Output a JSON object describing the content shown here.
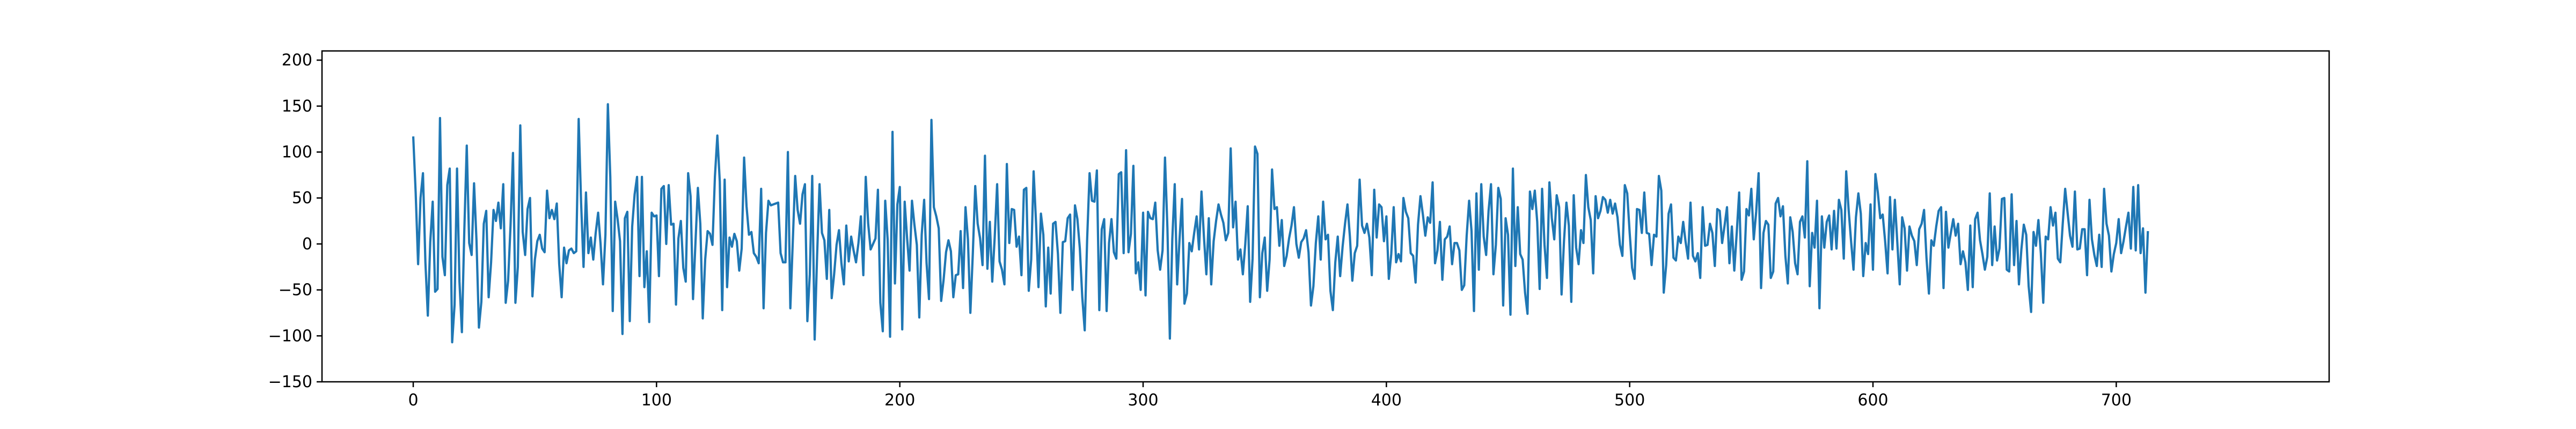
{
  "chart_data": {
    "type": "line",
    "title": "",
    "xlabel": "",
    "ylabel": "",
    "xlim": [
      -37.5,
      787.5
    ],
    "ylim": [
      -150,
      210
    ],
    "x_ticks": [
      0,
      100,
      200,
      300,
      400,
      500,
      600,
      700
    ],
    "x_tick_labels": [
      "0",
      "100",
      "200",
      "300",
      "400",
      "500",
      "600",
      "700"
    ],
    "y_ticks": [
      -150,
      -100,
      -50,
      0,
      50,
      100,
      150,
      200
    ],
    "y_tick_labels": [
      "−150",
      "−100",
      "−50",
      "0",
      "50",
      "100",
      "150",
      "200"
    ],
    "grid": false,
    "legend": "none",
    "line_color": "#1f77b4",
    "series": [
      {
        "values": [
          117,
          56,
          -22,
          50,
          77,
          -20,
          -78,
          2,
          46,
          -52,
          -49,
          137,
          -14,
          -34,
          64,
          82,
          -107,
          -66,
          82,
          -41,
          -96,
          15,
          107,
          1,
          -12,
          66,
          4,
          -91,
          -63,
          22,
          36,
          -58,
          -20,
          37,
          25,
          45,
          17,
          65,
          -64,
          -40,
          20,
          99,
          -64,
          -25,
          129,
          13,
          -12,
          38,
          50,
          -57,
          -17,
          3,
          10,
          -5,
          -9,
          58,
          28,
          37,
          27,
          44,
          -22,
          -58,
          -4,
          -21,
          -7,
          -5,
          -10,
          -8,
          136,
          45,
          -25,
          56,
          -10,
          7,
          -17,
          12,
          34,
          0,
          -44,
          10,
          152,
          73,
          -73,
          46,
          27,
          3,
          -98,
          28,
          35,
          -84,
          19,
          54,
          73,
          -35,
          73,
          -47,
          -8,
          -85,
          34,
          30,
          31,
          -35,
          60,
          63,
          0,
          64,
          21,
          22,
          -66,
          6,
          25,
          -26,
          -41,
          77,
          52,
          -60,
          1,
          61,
          22,
          -81,
          -17,
          14,
          11,
          -1,
          73,
          118,
          68,
          -72,
          70,
          -47,
          7,
          -3,
          11,
          3,
          -29,
          -5,
          94,
          41,
          10,
          13,
          -10,
          -14,
          -21,
          60,
          -70,
          12,
          47,
          42,
          43,
          44,
          45,
          -10,
          -20,
          -20,
          100,
          -70,
          2,
          74,
          37,
          22,
          54,
          65,
          -84,
          -33,
          74,
          -104,
          -13,
          65,
          12,
          4,
          -38,
          37,
          -59,
          -33,
          -1,
          15,
          -21,
          -44,
          20,
          -19,
          8,
          -7,
          -20,
          1,
          30,
          -34,
          73,
          22,
          -6,
          0,
          6,
          59,
          -64,
          -95,
          47,
          5,
          -101,
          122,
          -43,
          43,
          62,
          -93,
          46,
          6,
          -29,
          47,
          21,
          -1,
          -80,
          10,
          48,
          -21,
          -60,
          135,
          40,
          30,
          17,
          -62,
          -39,
          -9,
          4,
          -8,
          -58,
          -34,
          -33,
          14,
          -48,
          40,
          5,
          -75,
          -11,
          63,
          22,
          6,
          -23,
          96,
          -27,
          24,
          -41,
          7,
          65,
          -19,
          -28,
          -44,
          87,
          1,
          38,
          37,
          -3,
          8,
          -34,
          59,
          61,
          -51,
          -17,
          79,
          23,
          -47,
          33,
          10,
          -68,
          -4,
          -54,
          22,
          24,
          -11,
          -75,
          2,
          3,
          28,
          32,
          -50,
          42,
          27,
          -5,
          -58,
          -94,
          5,
          77,
          47,
          46,
          80,
          -72,
          16,
          27,
          -73,
          1,
          27,
          -9,
          -16,
          76,
          78,
          -10,
          102,
          -9,
          11,
          85,
          -32,
          -20,
          -50,
          34,
          -56,
          35,
          28,
          27,
          45,
          -7,
          -28,
          -7,
          94,
          17,
          -103,
          5,
          65,
          -44,
          6,
          49,
          -65,
          -54,
          1,
          -8,
          12,
          30,
          -6,
          57,
          8,
          -33,
          28,
          -44,
          3,
          25,
          43,
          32,
          23,
          4,
          12,
          104,
          18,
          46,
          -17,
          -6,
          -33,
          0,
          41,
          -63,
          -16,
          106,
          98,
          -58,
          -10,
          7,
          -51,
          -17,
          81,
          38,
          40,
          -2,
          26,
          -24,
          -13,
          6,
          20,
          40,
          0,
          -15,
          2,
          6,
          15,
          -9,
          -67,
          -46,
          1,
          30,
          -17,
          46,
          5,
          10,
          -51,
          -72,
          -20,
          8,
          -35,
          -3,
          22,
          43,
          8,
          -40,
          -10,
          -2,
          70,
          20,
          12,
          22,
          7,
          -34,
          59,
          7,
          43,
          40,
          3,
          30,
          -38,
          -11,
          40,
          -20,
          -11,
          -19,
          50,
          35,
          28,
          -10,
          -13,
          -42,
          21,
          52,
          32,
          9,
          29,
          23,
          67,
          -21,
          -7,
          24,
          -39,
          5,
          8,
          19,
          -22,
          1,
          1,
          -7,
          -50,
          -45,
          9,
          47,
          14,
          -73,
          55,
          -28,
          65,
          8,
          -12,
          36,
          65,
          -33,
          -1,
          61,
          49,
          -67,
          28,
          10,
          -77,
          82,
          -24,
          40,
          -11,
          -17,
          -53,
          -76,
          57,
          38,
          58,
          24,
          -49,
          60,
          -1,
          -37,
          67,
          28,
          5,
          53,
          40,
          -55,
          3,
          45,
          20,
          -63,
          53,
          -4,
          -22,
          15,
          1,
          75,
          40,
          26,
          -32,
          52,
          28,
          36,
          51,
          48,
          34,
          48,
          33,
          44,
          29,
          -1,
          -13,
          64,
          55,
          12,
          -26,
          -38,
          38,
          37,
          12,
          56,
          12,
          11,
          -23,
          10,
          8,
          74,
          58,
          -53,
          -23,
          33,
          43,
          -15,
          -18,
          8,
          1,
          24,
          2,
          -16,
          45,
          -13,
          -19,
          -10,
          -37,
          40,
          -2,
          -1,
          22,
          12,
          -24,
          38,
          36,
          1,
          20,
          40,
          -21,
          19,
          -29,
          12,
          56,
          -39,
          -30,
          38,
          31,
          60,
          5,
          35,
          77,
          -48,
          12,
          25,
          21,
          -37,
          -30,
          44,
          50,
          30,
          41,
          -13,
          -43,
          29,
          13,
          -21,
          -33,
          24,
          30,
          7,
          90,
          -46,
          12,
          -4,
          47,
          -70,
          30,
          -4,
          24,
          31,
          -6,
          36,
          -5,
          48,
          37,
          -16,
          79,
          37,
          3,
          -28,
          29,
          55,
          33,
          -35,
          1,
          -11,
          43,
          -28,
          76,
          56,
          28,
          32,
          3,
          -32,
          51,
          -6,
          48,
          2,
          -44,
          29,
          17,
          -29,
          19,
          9,
          3,
          -23,
          16,
          22,
          37,
          -15,
          -54,
          4,
          -2,
          19,
          36,
          40,
          -48,
          35,
          -4,
          12,
          27,
          9,
          22,
          -22,
          -8,
          -20,
          -50,
          20,
          -47,
          27,
          34,
          4,
          -11,
          -28,
          -14,
          55,
          -23,
          19,
          -18,
          -5,
          49,
          50,
          -28,
          -30,
          54,
          -23,
          25,
          -44,
          -6,
          21,
          10,
          -46,
          -74,
          13,
          -2,
          26,
          -10,
          -64,
          8,
          5,
          40,
          20,
          34,
          -16,
          -20,
          22,
          60,
          34,
          9,
          -3,
          57,
          -6,
          -5,
          16,
          16,
          -34,
          48,
          5,
          -12,
          -24,
          10,
          -25,
          60,
          22,
          9,
          -30,
          -11,
          1,
          27,
          -10,
          3,
          19,
          34,
          -5,
          62,
          -7,
          64,
          -10,
          17,
          -53,
          14
        ]
      }
    ]
  }
}
